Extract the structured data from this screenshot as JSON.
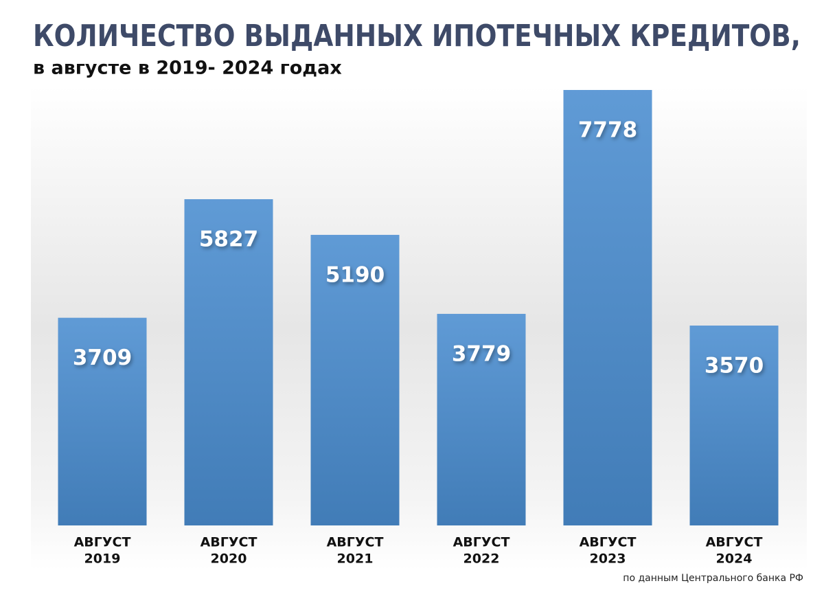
{
  "chart_data": {
    "type": "bar",
    "title": "КОЛИЧЕСТВО ВЫДАННЫХ ИПОТЕЧНЫХ КРЕДИТОВ,",
    "subtitle": "в августе в 2019- 2024 годах",
    "categories": [
      [
        "АВГУСТ",
        "2019"
      ],
      [
        "АВГУСТ",
        "2020"
      ],
      [
        "АВГУСТ",
        "2021"
      ],
      [
        "АВГУСТ",
        "2022"
      ],
      [
        "АВГУСТ",
        "2023"
      ],
      [
        "АВГУСТ",
        "2024"
      ]
    ],
    "values": [
      3709,
      5827,
      5190,
      3779,
      7778,
      3570
    ],
    "color": "#4a8dd0",
    "source": "по данным  Центрального банка РФ"
  }
}
